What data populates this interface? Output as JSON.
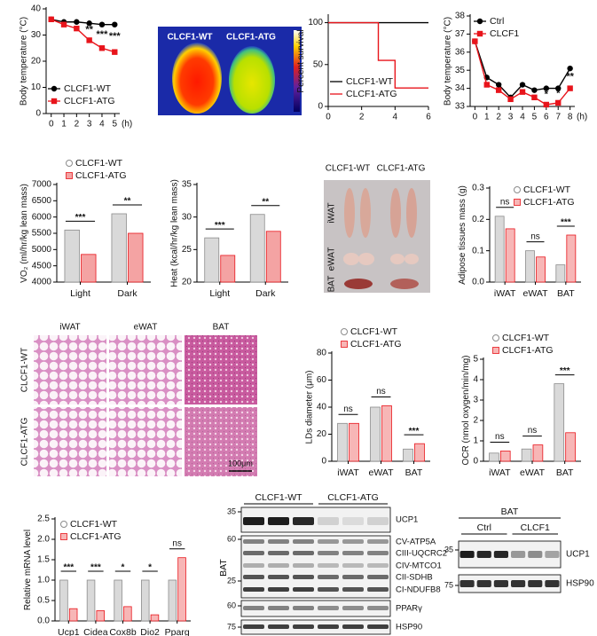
{
  "chart_data": [
    {
      "type": "line",
      "x": [
        0,
        1,
        2,
        3,
        4,
        5
      ],
      "xlim": [
        -0.4,
        5.4
      ],
      "xticks": [
        0,
        1,
        2,
        3,
        4,
        5
      ],
      "xlabel": "(h)",
      "ylabel": "Body temperature (°C)",
      "ylim": [
        0,
        40
      ],
      "yticks": [
        0,
        10,
        20,
        30,
        40
      ],
      "legend": "lower-left",
      "series": [
        {
          "name": "CLCF1-WT",
          "color": "#000000",
          "marker": "circle",
          "values": [
            36,
            35,
            35,
            34.5,
            34,
            34
          ]
        },
        {
          "name": "CLCF1-ATG",
          "color": "#e8141b",
          "marker": "square",
          "values": [
            36,
            34,
            32.5,
            28,
            25,
            23.5
          ]
        }
      ],
      "annotations": [
        {
          "x": 3,
          "label": "**"
        },
        {
          "x": 4,
          "label": "***"
        },
        {
          "x": 5,
          "label": "***"
        }
      ]
    },
    {
      "type": "line",
      "step": true,
      "xlim": [
        0,
        6
      ],
      "xticks": [
        0,
        2,
        4,
        6
      ],
      "ylabel": "Percent survival",
      "ylim": [
        0,
        108
      ],
      "yticks": [
        0,
        50,
        100
      ],
      "legend": "lower-left",
      "series": [
        {
          "name": "CLCF1-WT",
          "color": "#000000",
          "x": [
            0,
            6
          ],
          "values": [
            100,
            100
          ]
        },
        {
          "name": "CLCF1-ATG",
          "color": "#e8141b",
          "x": [
            0,
            3,
            4,
            6
          ],
          "values": [
            100,
            55,
            22,
            22
          ]
        }
      ]
    },
    {
      "type": "line",
      "x": [
        0,
        1,
        2,
        3,
        4,
        5,
        6,
        7,
        8
      ],
      "xlim": [
        -0.4,
        8.4
      ],
      "xticks": [
        0,
        1,
        2,
        3,
        4,
        5,
        6,
        7,
        8
      ],
      "xlabel": "(h)",
      "ylabel": "Body temperature (°C)",
      "ylim": [
        33,
        38
      ],
      "yticks": [
        33,
        34,
        35,
        36,
        37,
        38
      ],
      "legend": "upper-left",
      "series": [
        {
          "name": "Ctrl",
          "color": "#000000",
          "marker": "circle",
          "values": [
            36.6,
            34.6,
            34.2,
            33.5,
            34.2,
            33.9,
            34.0,
            34.0,
            35.1
          ]
        },
        {
          "name": "CLCF1",
          "color": "#e8141b",
          "marker": "square",
          "values": [
            36.6,
            34.2,
            33.9,
            33.4,
            33.8,
            33.5,
            33.1,
            33.2,
            34.0
          ]
        }
      ],
      "annotations": [
        {
          "x": 6,
          "label": "*"
        },
        {
          "x": 7,
          "label": "*"
        },
        {
          "x": 8,
          "label": "**"
        }
      ]
    },
    {
      "type": "bar",
      "categories": [
        "Light",
        "Dark"
      ],
      "ylabel": "VO₂ (ml/hr/kg lean mass)",
      "ylim": [
        4000,
        7000
      ],
      "yticks": [
        4000,
        4500,
        5000,
        5500,
        6000,
        6500,
        7000
      ],
      "legend": "above",
      "series": [
        {
          "name": "CLCF1-WT",
          "color": "#d9d9d9",
          "edge": "#8c8c8c",
          "marker": "circle",
          "values": [
            5600,
            6100
          ]
        },
        {
          "name": "CLCF1-ATG",
          "color": "#f4a3a3",
          "edge": "#e8141b",
          "marker": "square",
          "values": [
            4850,
            5500
          ]
        }
      ],
      "annotations": [
        "***",
        "**"
      ]
    },
    {
      "type": "bar",
      "categories": [
        "Light",
        "Dark"
      ],
      "ylabel": "Heat (kcal/hr/kg lean mass)",
      "ylim": [
        20,
        35
      ],
      "yticks": [
        20,
        25,
        30,
        35
      ],
      "series": [
        {
          "name": "CLCF1-WT",
          "color": "#d9d9d9",
          "edge": "#8c8c8c",
          "values": [
            26.8,
            30.4
          ]
        },
        {
          "name": "CLCF1-ATG",
          "color": "#f4a3a3",
          "edge": "#e8141b",
          "values": [
            24.1,
            27.8
          ]
        }
      ],
      "annotations": [
        "***",
        "**"
      ]
    },
    {
      "type": "bar",
      "categories": [
        "iWAT",
        "eWAT",
        "BAT"
      ],
      "ylabel": "Adipose tissues mass (g)",
      "ylim": [
        0,
        0.3
      ],
      "yticks": [
        {
          "value": 0,
          "label": "0.0"
        },
        0.1,
        0.2,
        0.3
      ],
      "legend": "upper-right",
      "series": [
        {
          "name": "CLCF1-WT",
          "color": "#d9d9d9",
          "edge": "#8c8c8c",
          "marker": "circle",
          "values": [
            0.21,
            0.1,
            0.055
          ]
        },
        {
          "name": "CLCF1-ATG",
          "color": "#f7b6b6",
          "edge": "#e8141b",
          "marker": "square",
          "values": [
            0.17,
            0.08,
            0.15
          ]
        }
      ],
      "annotations": [
        "ns",
        "ns",
        "***"
      ]
    },
    {
      "type": "bar",
      "categories": [
        "iWAT",
        "eWAT",
        "BAT"
      ],
      "ylabel": "LDs diameter (μm)",
      "ylim": [
        0,
        80
      ],
      "yticks": [
        0,
        20,
        40,
        60,
        80
      ],
      "legend": "above",
      "series": [
        {
          "name": "CLCF1-WT",
          "color": "#d9d9d9",
          "edge": "#8c8c8c",
          "marker": "circle",
          "values": [
            28,
            40,
            9
          ]
        },
        {
          "name": "CLCF1-ATG",
          "color": "#f7b6b6",
          "edge": "#e8141b",
          "marker": "square",
          "values": [
            28,
            41,
            13
          ]
        }
      ],
      "annotations": [
        "ns",
        "ns",
        "***"
      ]
    },
    {
      "type": "bar",
      "categories": [
        "iWAT",
        "eWAT",
        "BAT"
      ],
      "ylabel": "OCR (nmol oxygen/min/mg)",
      "ylim": [
        0,
        5
      ],
      "yticks": [
        0,
        1,
        2,
        3,
        4,
        5
      ],
      "legend": "above",
      "series": [
        {
          "name": "CLCF1-WT",
          "color": "#d9d9d9",
          "edge": "#8c8c8c",
          "marker": "circle",
          "values": [
            0.4,
            0.6,
            3.8
          ]
        },
        {
          "name": "CLCF1-ATG",
          "color": "#f7b6b6",
          "edge": "#e8141b",
          "marker": "square",
          "values": [
            0.5,
            0.8,
            1.4
          ]
        }
      ],
      "annotations": [
        "ns",
        "ns",
        "***"
      ]
    },
    {
      "type": "bar",
      "categories": [
        "Ucp1",
        "Cidea",
        "Cox8b",
        "Dio2",
        "Pparg"
      ],
      "ylabel": "Relative mRNA level",
      "ylim": [
        0,
        2.5
      ],
      "yticks": [
        {
          "value": 0,
          "label": "0.0"
        },
        0.5,
        {
          "value": 1,
          "label": "1.0"
        },
        1.5,
        {
          "value": 2,
          "label": "2.0"
        },
        2.5
      ],
      "legend": "upper-left",
      "series": [
        {
          "name": "CLCF1-WT",
          "color": "#d9d9d9",
          "edge": "#8c8c8c",
          "marker": "circle",
          "values": [
            1.0,
            1.0,
            1.0,
            1.0,
            1.0
          ]
        },
        {
          "name": "CLCF1-ATG",
          "color": "#f7b6b6",
          "edge": "#e8141b",
          "marker": "square",
          "values": [
            0.3,
            0.25,
            0.35,
            0.15,
            1.55
          ]
        }
      ],
      "annotations": [
        "***",
        "***",
        "*",
        "*",
        "ns"
      ]
    }
  ],
  "figure_panels": {
    "thermal_image": {
      "labels": [
        "CLCF1-WT",
        "CLCF1-ATG"
      ]
    },
    "tissue_photo": {
      "columns": [
        "CLCF1-WT",
        "CLCF1-ATG"
      ],
      "rows": [
        "iWAT",
        "eWAT",
        "BAT"
      ]
    },
    "histology": {
      "columns": [
        "iWAT",
        "eWAT",
        "BAT"
      ],
      "rows": [
        "CLCF1-WT",
        "CLCF1-ATG"
      ],
      "scale_bar": "100μm"
    },
    "blot_mitochondria": {
      "groups": [
        "CLCF1-WT",
        "CLCF1-ATG"
      ],
      "tissue": "BAT",
      "markers": [
        35,
        60,
        25,
        60,
        75
      ],
      "bands": [
        "UCP1",
        "CV-ATP5A",
        "CIII-UQCRC2",
        "CIV-MTCO1",
        "CII-SDHB",
        "CI-NDUFB8",
        "PPARγ",
        "HSP90"
      ]
    },
    "blot_ucp1": {
      "tissue": "BAT",
      "groups": [
        "Ctrl",
        "CLCF1"
      ],
      "markers": [
        35,
        75
      ],
      "bands": [
        "UCP1",
        "HSP90"
      ]
    }
  }
}
